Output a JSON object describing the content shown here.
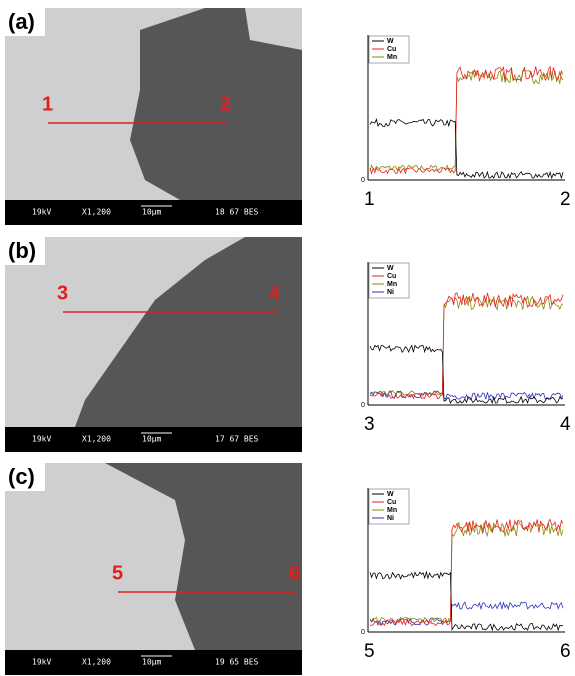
{
  "panels": [
    {
      "label": "(a)",
      "start": "1",
      "end": "2",
      "info": {
        "voltage": "19kV",
        "magnification": "X1,200",
        "scale": "10µm",
        "code": "18 67 BES"
      },
      "profile": {
        "origin": "0",
        "legend": [
          "W",
          "Cu",
          "Mn"
        ]
      }
    },
    {
      "label": "(b)",
      "start": "3",
      "end": "4",
      "info": {
        "voltage": "19kV",
        "magnification": "X1,200",
        "scale": "10µm",
        "code": "17 67 BES"
      },
      "profile": {
        "origin": "0",
        "legend": [
          "W",
          "Cu",
          "Mn",
          "Ni"
        ]
      }
    },
    {
      "label": "(c)",
      "start": "5",
      "end": "6",
      "info": {
        "voltage": "19kV",
        "magnification": "X1,200",
        "scale": "10µm",
        "code": "19 65 BES"
      },
      "profile": {
        "origin": "0",
        "legend": [
          "W",
          "Cu",
          "Mn",
          "Ni"
        ]
      }
    }
  ]
}
